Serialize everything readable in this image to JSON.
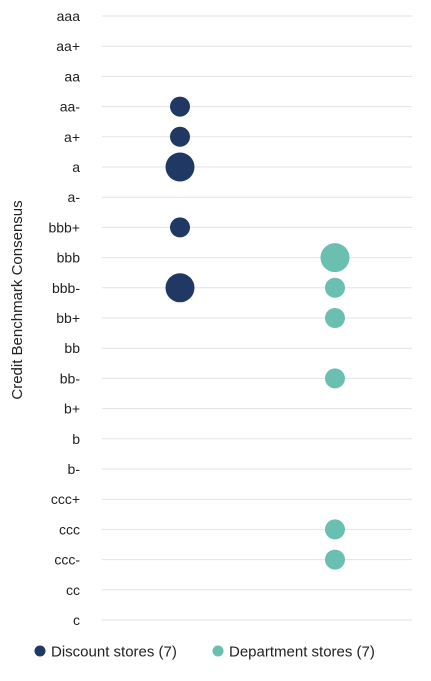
{
  "chart_data": {
    "type": "scatter",
    "ylabel": "Credit Benchmark Consensus",
    "y_categories": [
      "aaa",
      "aa+",
      "aa",
      "aa-",
      "a+",
      "a",
      "a-",
      "bbb+",
      "bbb",
      "bbb-",
      "bb+",
      "bb",
      "bb-",
      "b+",
      "b",
      "b-",
      "ccc+",
      "ccc",
      "ccc-",
      "cc",
      "c"
    ],
    "x_categories": [
      "Discount stores (7)",
      "Department stores (7)"
    ],
    "grid": true,
    "legend_position": "bottom",
    "series": [
      {
        "name": "Discount stores (7)",
        "color": "#1f3864",
        "points": [
          {
            "rating": "aa-",
            "count": 1
          },
          {
            "rating": "a+",
            "count": 1
          },
          {
            "rating": "a",
            "count": 2
          },
          {
            "rating": "bbb+",
            "count": 1
          },
          {
            "rating": "bbb-",
            "count": 2
          }
        ]
      },
      {
        "name": "Department stores (7)",
        "color": "#6abfb0",
        "points": [
          {
            "rating": "bbb",
            "count": 2
          },
          {
            "rating": "bbb-",
            "count": 1
          },
          {
            "rating": "bb+",
            "count": 1
          },
          {
            "rating": "bb-",
            "count": 1
          },
          {
            "rating": "ccc",
            "count": 1
          },
          {
            "rating": "ccc-",
            "count": 1
          }
        ]
      }
    ]
  }
}
